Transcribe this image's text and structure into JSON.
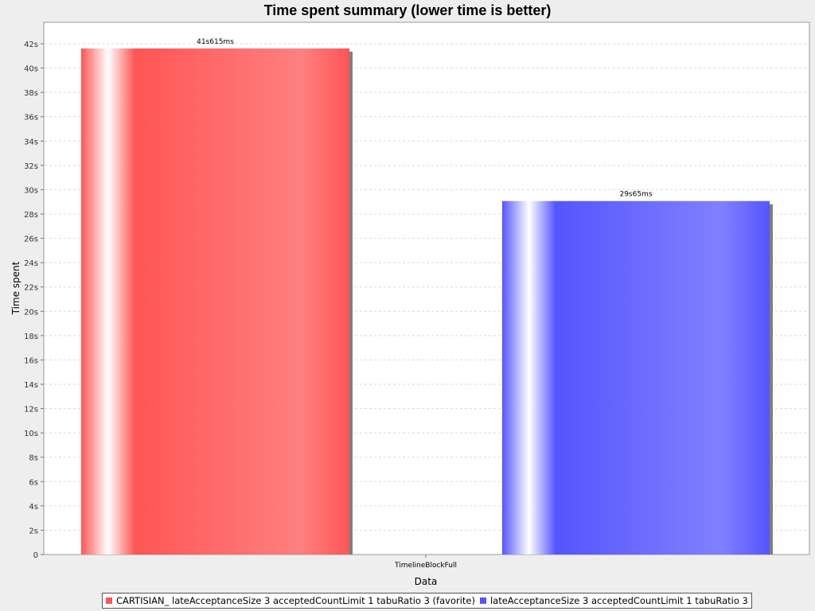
{
  "chart_data": {
    "type": "bar",
    "title": "Time spent summary (lower time is better)",
    "xlabel": "Data",
    "ylabel": "Time spent",
    "categories": [
      "TimelineBlockFull"
    ],
    "series": [
      {
        "name": "CARTISIAN_ lateAcceptanceSize 3 acceptedCountLimit 1 tabuRatio 3 (favorite)",
        "values": [
          41.615
        ],
        "data_labels": [
          "41s615ms"
        ],
        "color": "#ff5555",
        "gradient": [
          "#ff5555",
          "#ffffff",
          "#ff5555",
          "#ff8080",
          "#ff5555"
        ]
      },
      {
        "name": "lateAcceptanceSize 3 acceptedCountLimit 1 tabuRatio 3",
        "values": [
          29.065
        ],
        "data_labels": [
          "29s65ms"
        ],
        "color": "#5555ff",
        "gradient": [
          "#5555ff",
          "#ffffff",
          "#5555ff",
          "#8080ff",
          "#5555ff"
        ]
      }
    ],
    "ylim": [
      0,
      42
    ],
    "yticks": [
      0,
      2,
      4,
      6,
      8,
      10,
      12,
      14,
      16,
      18,
      20,
      22,
      24,
      26,
      28,
      30,
      32,
      34,
      36,
      38,
      40,
      42
    ],
    "ytick_labels": [
      "0",
      "2s",
      "4s",
      "6s",
      "8s",
      "10s",
      "12s",
      "14s",
      "16s",
      "18s",
      "20s",
      "22s",
      "24s",
      "26s",
      "28s",
      "30s",
      "32s",
      "34s",
      "36s",
      "38s",
      "40s",
      "42s"
    ],
    "grid": true,
    "legend_position": "bottom"
  }
}
